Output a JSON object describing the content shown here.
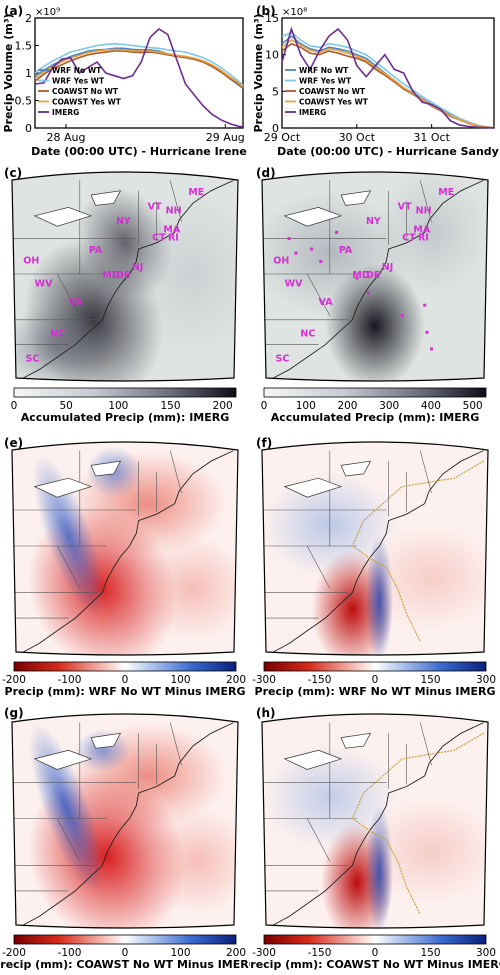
{
  "colors": {
    "wrf_no": "#4a86c5",
    "wrf_yes": "#7ec6e8",
    "coawst_no": "#b0582c",
    "coawst_yes": "#e8a23a",
    "imerg": "#6a2c91",
    "state_label": "#d42ed4",
    "diff_neg": "#b00000",
    "diff_pos": "#1f3fb0"
  },
  "panels": {
    "a": {
      "label": "(a)"
    },
    "b": {
      "label": "(b)"
    },
    "c": {
      "label": "(c)"
    },
    "d": {
      "label": "(d)"
    },
    "e": {
      "label": "(e)"
    },
    "f": {
      "label": "(f)"
    },
    "g": {
      "label": "(g)"
    },
    "h": {
      "label": "(h)"
    }
  },
  "state_labels_c": [
    "ME",
    "VT",
    "NH",
    "NY",
    "MA",
    "CT",
    "RI",
    "PA",
    "NJ",
    "OH",
    "MD",
    "DE",
    "WV",
    "VA",
    "NC",
    "SC"
  ],
  "state_labels_d": [
    "ME",
    "VT",
    "NH",
    "NY",
    "MA",
    "CT",
    "RI",
    "PA",
    "NJ",
    "OH",
    "MD",
    "DE",
    "WV",
    "VA",
    "NC",
    "SC"
  ],
  "colorbars": {
    "c": {
      "ticks": [
        "0",
        "50",
        "100",
        "150",
        "200"
      ],
      "title": "Accumulated Precip (mm): IMERG"
    },
    "d": {
      "ticks": [
        "0",
        "100",
        "200",
        "300",
        "400",
        "500"
      ],
      "title": "Accumulated Precip (mm): IMERG"
    },
    "e": {
      "ticks": [
        "-200",
        "-100",
        "0",
        "100",
        "200"
      ],
      "title": "Precip (mm): WRF No WT Minus IMERG"
    },
    "f": {
      "ticks": [
        "-300",
        "-150",
        "0",
        "150",
        "300"
      ],
      "title": "Precip (mm): WRF No WT Minus IMERG"
    },
    "g": {
      "ticks": [
        "-200",
        "-100",
        "0",
        "100",
        "200"
      ],
      "title": "Precip (mm): COAWST No WT Minus IMERG"
    },
    "h": {
      "ticks": [
        "-300",
        "-150",
        "0",
        "150",
        "300"
      ],
      "title": "Precip (mm): COAWST No WT Minus IMERG"
    }
  },
  "chart_data": [
    {
      "type": "line",
      "panel": "a",
      "ylabel": "Precip Volume (m³)",
      "xlabel": "Date (00:00 UTC) - Hurricane Irene",
      "y_multiplier": "×10⁹",
      "ylim": [
        0,
        2
      ],
      "yticks": [
        "0",
        "0.5",
        "1",
        "1.5",
        "2"
      ],
      "xlim": [
        0,
        47
      ],
      "xtick_positions": [
        7,
        43
      ],
      "xticks": [
        "28 Aug",
        "29 Aug"
      ],
      "x": [
        0,
        2,
        4,
        6,
        8,
        10,
        12,
        14,
        16,
        18,
        20,
        22,
        24,
        26,
        28,
        30,
        32,
        34,
        36,
        38,
        40,
        42,
        44,
        46,
        47
      ],
      "series": [
        {
          "name": "WRF No WT",
          "values": [
            0.95,
            1.05,
            1.15,
            1.22,
            1.3,
            1.35,
            1.4,
            1.42,
            1.43,
            1.45,
            1.45,
            1.43,
            1.42,
            1.42,
            1.4,
            1.35,
            1.32,
            1.3,
            1.25,
            1.2,
            1.12,
            1.02,
            0.9,
            0.78,
            0.72
          ]
        },
        {
          "name": "WRF Yes WT",
          "values": [
            1.0,
            1.12,
            1.22,
            1.3,
            1.38,
            1.42,
            1.46,
            1.5,
            1.52,
            1.53,
            1.52,
            1.5,
            1.48,
            1.46,
            1.45,
            1.42,
            1.4,
            1.38,
            1.33,
            1.28,
            1.2,
            1.1,
            0.98,
            0.85,
            0.78
          ]
        },
        {
          "name": "COAWST No WT",
          "values": [
            0.85,
            0.98,
            1.08,
            1.15,
            1.22,
            1.28,
            1.33,
            1.36,
            1.38,
            1.4,
            1.4,
            1.38,
            1.37,
            1.38,
            1.36,
            1.33,
            1.3,
            1.28,
            1.25,
            1.2,
            1.12,
            1.02,
            0.9,
            0.8,
            0.73
          ]
        },
        {
          "name": "COAWST Yes WT",
          "values": [
            0.9,
            1.02,
            1.12,
            1.2,
            1.27,
            1.32,
            1.37,
            1.4,
            1.42,
            1.43,
            1.42,
            1.4,
            1.4,
            1.4,
            1.38,
            1.35,
            1.32,
            1.3,
            1.27,
            1.22,
            1.15,
            1.05,
            0.93,
            0.82,
            0.75
          ]
        },
        {
          "name": "IMERG",
          "values": [
            0.8,
            0.82,
            1.1,
            1.25,
            1.28,
            1.0,
            1.1,
            1.2,
            1.0,
            0.95,
            0.9,
            0.95,
            1.2,
            1.65,
            1.8,
            1.7,
            1.25,
            0.8,
            0.6,
            0.4,
            0.25,
            0.15,
            0.08,
            0.03,
            0.02
          ]
        }
      ]
    },
    {
      "type": "line",
      "panel": "b",
      "ylabel": "Precip Volume (m³)",
      "xlabel": "Date (00:00 UTC) - Hurricane Sandy",
      "y_multiplier": "×10⁸",
      "ylim": [
        0,
        15
      ],
      "yticks": [
        "0",
        "5",
        "10",
        "15"
      ],
      "xlim": [
        0,
        68
      ],
      "xtick_positions": [
        0,
        24,
        48
      ],
      "xticks": [
        "29 Oct",
        "30 Oct",
        "31 Oct"
      ],
      "x": [
        0,
        3,
        6,
        9,
        12,
        15,
        18,
        21,
        24,
        27,
        30,
        33,
        36,
        39,
        42,
        45,
        48,
        51,
        54,
        57,
        60,
        63,
        66,
        68
      ],
      "series": [
        {
          "name": "WRF No WT",
          "values": [
            11.5,
            12.5,
            11.5,
            10.8,
            10.5,
            11.0,
            10.8,
            10.5,
            10.0,
            9.5,
            8.5,
            7.5,
            6.5,
            5.5,
            4.8,
            4.0,
            3.2,
            2.5,
            1.8,
            1.2,
            0.7,
            0.3,
            0.1,
            0.05
          ]
        },
        {
          "name": "WRF Yes WT",
          "values": [
            12.5,
            13.0,
            12.0,
            11.2,
            11.0,
            11.5,
            11.3,
            11.0,
            10.5,
            10.0,
            9.0,
            8.0,
            7.0,
            6.0,
            5.2,
            4.3,
            3.5,
            2.7,
            2.0,
            1.3,
            0.8,
            0.35,
            0.12,
            0.05
          ]
        },
        {
          "name": "COAWST No WT",
          "values": [
            10.5,
            11.5,
            11.0,
            10.2,
            10.0,
            10.5,
            10.2,
            9.8,
            9.5,
            9.0,
            8.0,
            7.2,
            6.3,
            5.3,
            4.6,
            3.8,
            3.0,
            2.3,
            1.6,
            1.1,
            0.6,
            0.25,
            0.1,
            0.04
          ]
        },
        {
          "name": "COAWST Yes WT",
          "values": [
            11.0,
            12.0,
            11.3,
            10.6,
            10.3,
            10.8,
            10.6,
            10.2,
            9.8,
            9.2,
            8.3,
            7.4,
            6.5,
            5.5,
            4.7,
            3.9,
            3.1,
            2.4,
            1.7,
            1.15,
            0.65,
            0.3,
            0.1,
            0.05
          ]
        },
        {
          "name": "IMERG",
          "values": [
            9.0,
            13.5,
            10.0,
            8.0,
            10.5,
            12.5,
            13.5,
            12.0,
            8.5,
            7.0,
            8.5,
            10.0,
            8.0,
            7.5,
            5.0,
            3.5,
            3.2,
            2.5,
            1.0,
            0.4,
            0.2,
            0.1,
            0.05,
            0.02
          ]
        }
      ]
    }
  ]
}
